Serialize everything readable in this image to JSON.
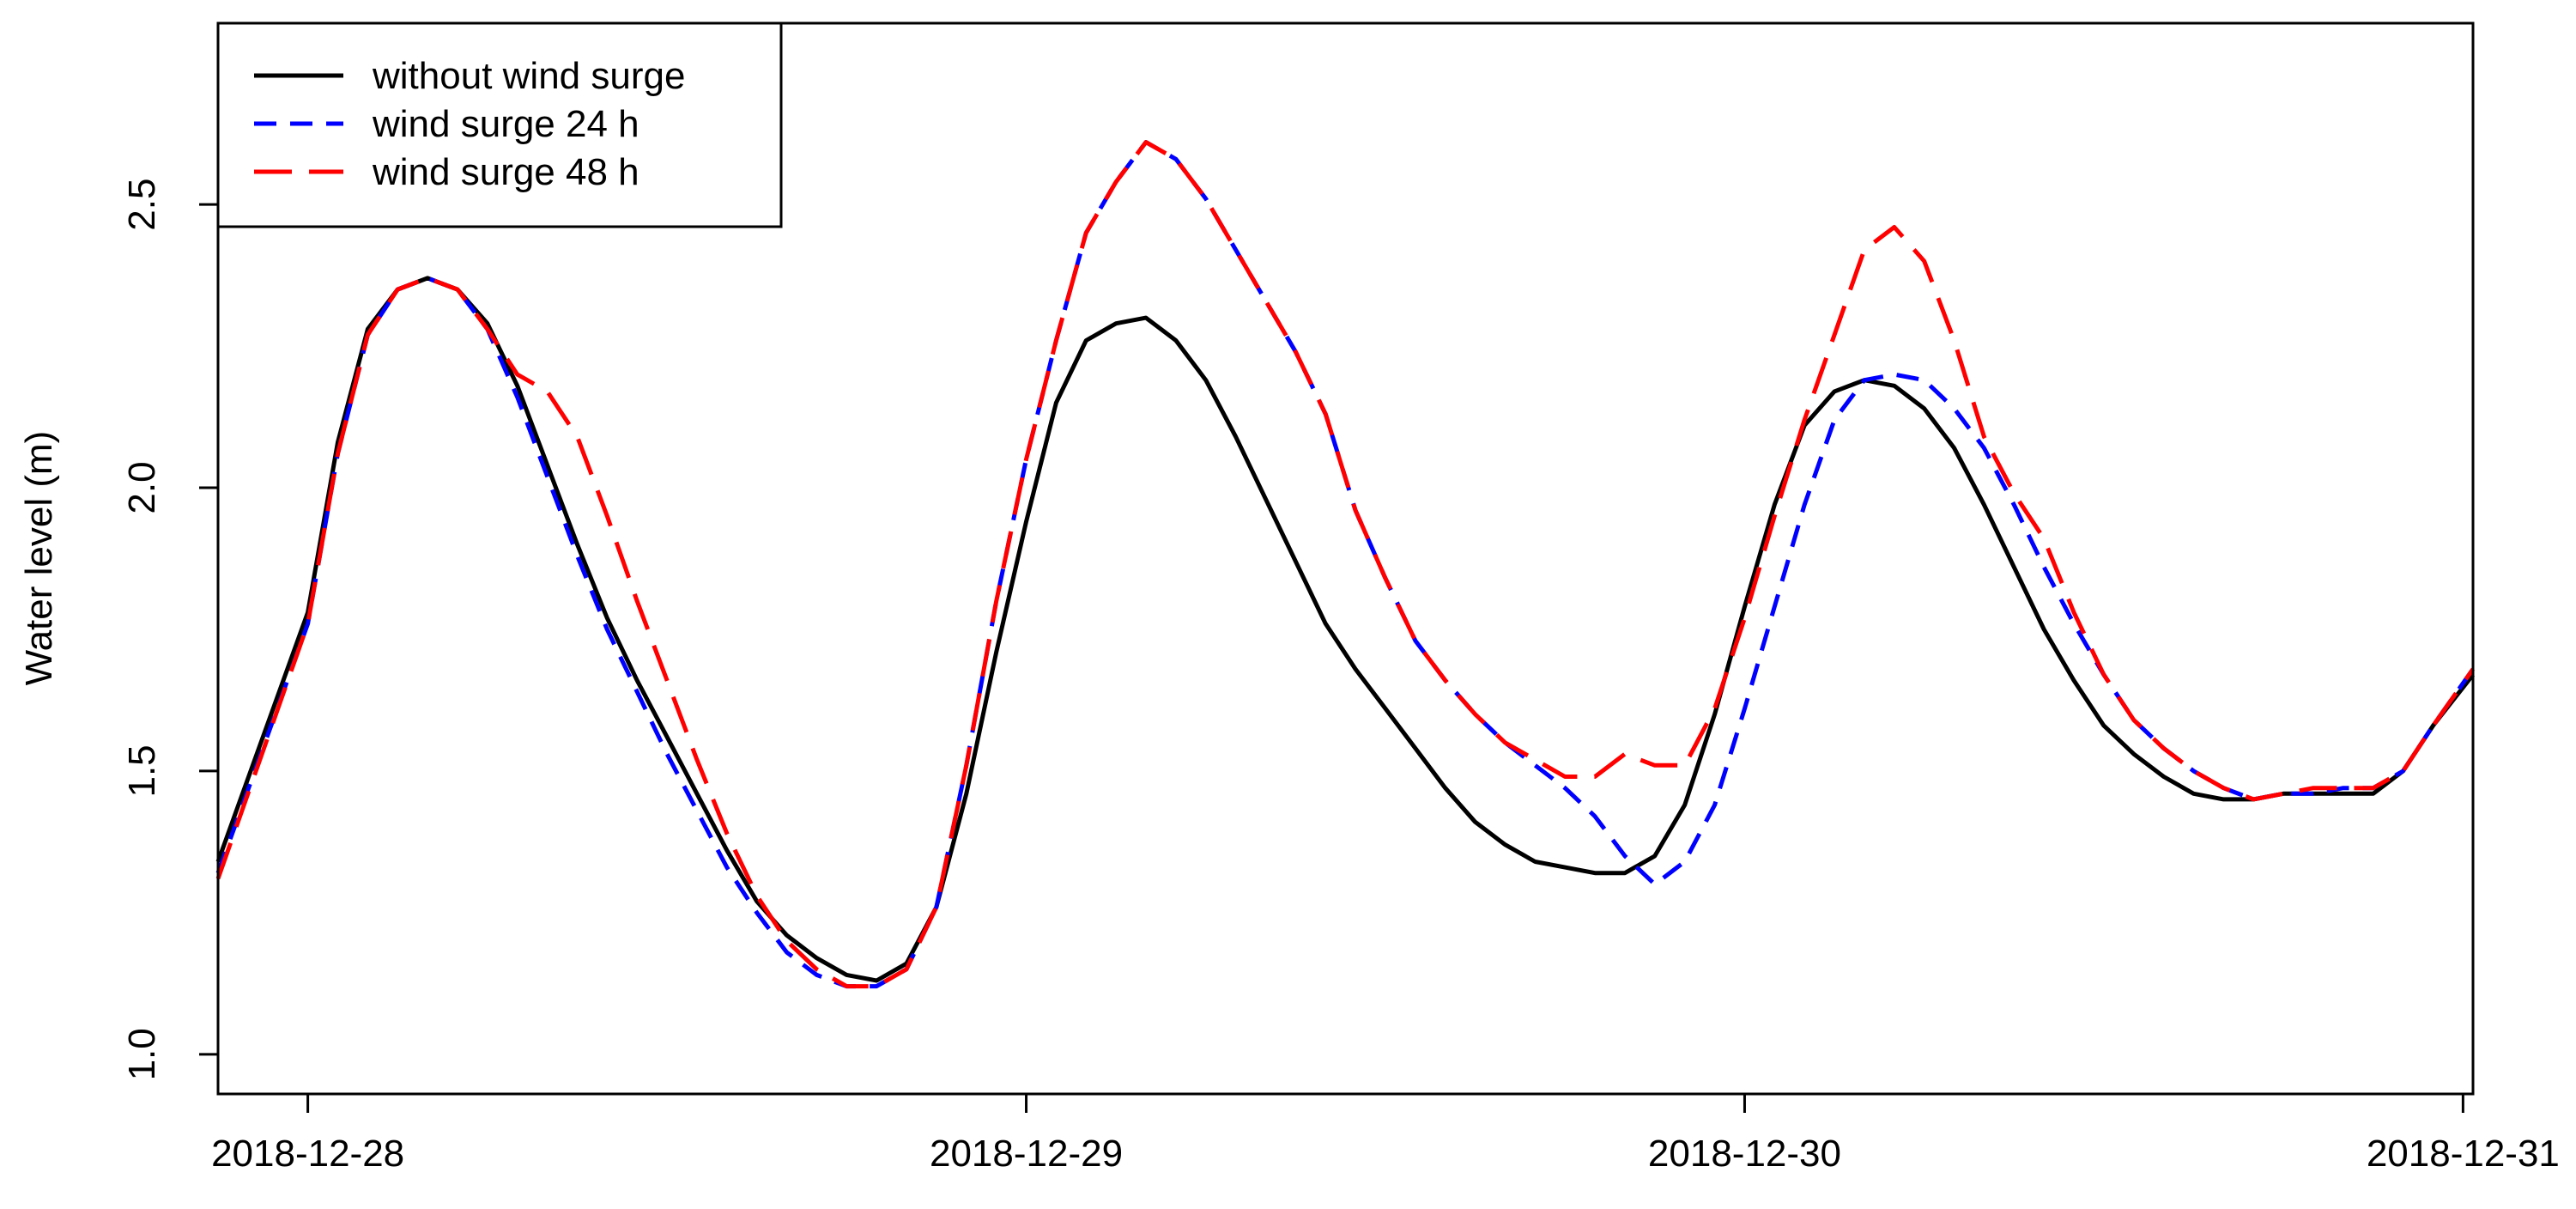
{
  "chart_data": {
    "type": "line",
    "title": "",
    "xlabel": "",
    "ylabel": "Water level (m)",
    "x_unit": "date (6 h / 3 h sampling)",
    "xlim": [
      "2018-12-27T21:00",
      "2018-12-31T00:20"
    ],
    "ylim": [
      0.93,
      2.82
    ],
    "x_ticks": [
      "2018-12-28",
      "2018-12-29",
      "2018-12-30",
      "2018-12-31"
    ],
    "y_ticks": [
      "1.0",
      "1.5",
      "2.0",
      "2.5"
    ],
    "grid": false,
    "legend_position": "top-left",
    "series": [
      {
        "name": "without wind surge",
        "color": "#000000",
        "dash": "solid",
        "points": [
          [
            "2018-12-27T21:00",
            1.34
          ],
          [
            "2018-12-28T00:00",
            1.78
          ],
          [
            "2018-12-28T01:00",
            2.08
          ],
          [
            "2018-12-28T02:00",
            2.28
          ],
          [
            "2018-12-28T03:00",
            2.35
          ],
          [
            "2018-12-28T04:00",
            2.37
          ],
          [
            "2018-12-28T05:00",
            2.35
          ],
          [
            "2018-12-28T06:00",
            2.29
          ],
          [
            "2018-12-28T07:00",
            2.18
          ],
          [
            "2018-12-28T08:00",
            2.04
          ],
          [
            "2018-12-28T09:00",
            1.9
          ],
          [
            "2018-12-28T10:00",
            1.77
          ],
          [
            "2018-12-28T11:00",
            1.66
          ],
          [
            "2018-12-28T12:00",
            1.56
          ],
          [
            "2018-12-28T13:00",
            1.46
          ],
          [
            "2018-12-28T14:00",
            1.36
          ],
          [
            "2018-12-28T15:00",
            1.27
          ],
          [
            "2018-12-28T16:00",
            1.21
          ],
          [
            "2018-12-28T17:00",
            1.17
          ],
          [
            "2018-12-28T18:00",
            1.14
          ],
          [
            "2018-12-28T19:00",
            1.13
          ],
          [
            "2018-12-28T20:00",
            1.16
          ],
          [
            "2018-12-28T21:00",
            1.26
          ],
          [
            "2018-12-28T22:00",
            1.46
          ],
          [
            "2018-12-28T23:00",
            1.71
          ],
          [
            "2018-12-29T00:00",
            1.94
          ],
          [
            "2018-12-29T01:00",
            2.15
          ],
          [
            "2018-12-29T02:00",
            2.26
          ],
          [
            "2018-12-29T03:00",
            2.29
          ],
          [
            "2018-12-29T04:00",
            2.3
          ],
          [
            "2018-12-29T05:00",
            2.26
          ],
          [
            "2018-12-29T06:00",
            2.19
          ],
          [
            "2018-12-29T07:00",
            2.09
          ],
          [
            "2018-12-29T08:00",
            1.98
          ],
          [
            "2018-12-29T09:00",
            1.87
          ],
          [
            "2018-12-29T10:00",
            1.76
          ],
          [
            "2018-12-29T11:00",
            1.68
          ],
          [
            "2018-12-29T12:00",
            1.61
          ],
          [
            "2018-12-29T13:00",
            1.54
          ],
          [
            "2018-12-29T14:00",
            1.47
          ],
          [
            "2018-12-29T15:00",
            1.41
          ],
          [
            "2018-12-29T16:00",
            1.37
          ],
          [
            "2018-12-29T17:00",
            1.34
          ],
          [
            "2018-12-29T18:00",
            1.33
          ],
          [
            "2018-12-29T19:00",
            1.32
          ],
          [
            "2018-12-29T20:00",
            1.32
          ],
          [
            "2018-12-29T21:00",
            1.35
          ],
          [
            "2018-12-29T22:00",
            1.44
          ],
          [
            "2018-12-29T23:00",
            1.6
          ],
          [
            "2018-12-30T00:00",
            1.79
          ],
          [
            "2018-12-30T01:00",
            1.97
          ],
          [
            "2018-12-30T02:00",
            2.11
          ],
          [
            "2018-12-30T03:00",
            2.17
          ],
          [
            "2018-12-30T04:00",
            2.19
          ],
          [
            "2018-12-30T05:00",
            2.18
          ],
          [
            "2018-12-30T06:00",
            2.14
          ],
          [
            "2018-12-30T07:00",
            2.07
          ],
          [
            "2018-12-30T08:00",
            1.97
          ],
          [
            "2018-12-30T09:00",
            1.86
          ],
          [
            "2018-12-30T10:00",
            1.75
          ],
          [
            "2018-12-30T11:00",
            1.66
          ],
          [
            "2018-12-30T12:00",
            1.58
          ],
          [
            "2018-12-30T13:00",
            1.53
          ],
          [
            "2018-12-30T14:00",
            1.49
          ],
          [
            "2018-12-30T15:00",
            1.46
          ],
          [
            "2018-12-30T16:00",
            1.45
          ],
          [
            "2018-12-30T17:00",
            1.45
          ],
          [
            "2018-12-30T18:00",
            1.46
          ],
          [
            "2018-12-30T19:00",
            1.46
          ],
          [
            "2018-12-30T20:00",
            1.46
          ],
          [
            "2018-12-30T21:00",
            1.46
          ],
          [
            "2018-12-30T22:00",
            1.5
          ],
          [
            "2018-12-30T23:00",
            1.58
          ],
          [
            "2018-12-31T00:20",
            1.67
          ]
        ]
      },
      {
        "name": "wind surge 24 h",
        "color": "#0000ff",
        "dash": "short",
        "points": [
          [
            "2018-12-27T21:00",
            1.32
          ],
          [
            "2018-12-28T00:00",
            1.76
          ],
          [
            "2018-12-28T01:00",
            2.06
          ],
          [
            "2018-12-28T02:00",
            2.27
          ],
          [
            "2018-12-28T03:00",
            2.35
          ],
          [
            "2018-12-28T04:00",
            2.37
          ],
          [
            "2018-12-28T05:00",
            2.35
          ],
          [
            "2018-12-28T06:00",
            2.28
          ],
          [
            "2018-12-28T07:00",
            2.16
          ],
          [
            "2018-12-28T08:00",
            2.02
          ],
          [
            "2018-12-28T09:00",
            1.88
          ],
          [
            "2018-12-28T10:00",
            1.75
          ],
          [
            "2018-12-28T11:00",
            1.64
          ],
          [
            "2018-12-28T12:00",
            1.53
          ],
          [
            "2018-12-28T13:00",
            1.43
          ],
          [
            "2018-12-28T14:00",
            1.33
          ],
          [
            "2018-12-28T15:00",
            1.25
          ],
          [
            "2018-12-28T16:00",
            1.18
          ],
          [
            "2018-12-28T17:00",
            1.14
          ],
          [
            "2018-12-28T18:00",
            1.12
          ],
          [
            "2018-12-28T19:00",
            1.12
          ],
          [
            "2018-12-28T20:00",
            1.15
          ],
          [
            "2018-12-28T21:00",
            1.26
          ],
          [
            "2018-12-28T22:00",
            1.51
          ],
          [
            "2018-12-28T23:00",
            1.8
          ],
          [
            "2018-12-29T00:00",
            2.05
          ],
          [
            "2018-12-29T01:00",
            2.26
          ],
          [
            "2018-12-29T02:00",
            2.45
          ],
          [
            "2018-12-29T03:00",
            2.54
          ],
          [
            "2018-12-29T04:00",
            2.61
          ],
          [
            "2018-12-29T05:00",
            2.58
          ],
          [
            "2018-12-29T06:00",
            2.51
          ],
          [
            "2018-12-29T07:00",
            2.42
          ],
          [
            "2018-12-29T08:00",
            2.33
          ],
          [
            "2018-12-29T09:00",
            2.24
          ],
          [
            "2018-12-29T10:00",
            2.13
          ],
          [
            "2018-12-29T11:00",
            1.96
          ],
          [
            "2018-12-29T12:00",
            1.84
          ],
          [
            "2018-12-29T13:00",
            1.73
          ],
          [
            "2018-12-29T14:00",
            1.66
          ],
          [
            "2018-12-29T15:00",
            1.6
          ],
          [
            "2018-12-29T16:00",
            1.55
          ],
          [
            "2018-12-29T17:00",
            1.51
          ],
          [
            "2018-12-29T18:00",
            1.47
          ],
          [
            "2018-12-29T19:00",
            1.42
          ],
          [
            "2018-12-29T20:00",
            1.35
          ],
          [
            "2018-12-29T21:00",
            1.3
          ],
          [
            "2018-12-29T22:00",
            1.34
          ],
          [
            "2018-12-29T23:00",
            1.44
          ],
          [
            "2018-12-30T00:00",
            1.61
          ],
          [
            "2018-12-30T01:00",
            1.79
          ],
          [
            "2018-12-30T02:00",
            1.97
          ],
          [
            "2018-12-30T03:00",
            2.12
          ],
          [
            "2018-12-30T04:00",
            2.19
          ],
          [
            "2018-12-30T05:00",
            2.2
          ],
          [
            "2018-12-30T06:00",
            2.19
          ],
          [
            "2018-12-30T07:00",
            2.14
          ],
          [
            "2018-12-30T08:00",
            2.07
          ],
          [
            "2018-12-30T09:00",
            1.97
          ],
          [
            "2018-12-30T10:00",
            1.86
          ],
          [
            "2018-12-30T11:00",
            1.76
          ],
          [
            "2018-12-30T12:00",
            1.67
          ],
          [
            "2018-12-30T13:00",
            1.59
          ],
          [
            "2018-12-30T14:00",
            1.54
          ],
          [
            "2018-12-30T15:00",
            1.5
          ],
          [
            "2018-12-30T16:00",
            1.47
          ],
          [
            "2018-12-30T17:00",
            1.45
          ],
          [
            "2018-12-30T18:00",
            1.46
          ],
          [
            "2018-12-30T19:00",
            1.46
          ],
          [
            "2018-12-30T20:00",
            1.47
          ],
          [
            "2018-12-30T21:00",
            1.47
          ],
          [
            "2018-12-30T22:00",
            1.5
          ],
          [
            "2018-12-30T23:00",
            1.58
          ],
          [
            "2018-12-31T00:20",
            1.68
          ]
        ]
      },
      {
        "name": "wind surge 48 h",
        "color": "#ff0000",
        "dash": "long",
        "points": [
          [
            "2018-12-27T21:00",
            1.31
          ],
          [
            "2018-12-28T00:00",
            1.76
          ],
          [
            "2018-12-28T01:00",
            2.06
          ],
          [
            "2018-12-28T02:00",
            2.27
          ],
          [
            "2018-12-28T03:00",
            2.35
          ],
          [
            "2018-12-28T04:00",
            2.37
          ],
          [
            "2018-12-28T05:00",
            2.35
          ],
          [
            "2018-12-28T06:00",
            2.28
          ],
          [
            "2018-12-28T07:00",
            2.2
          ],
          [
            "2018-12-28T08:00",
            2.17
          ],
          [
            "2018-12-28T09:00",
            2.09
          ],
          [
            "2018-12-28T10:00",
            1.95
          ],
          [
            "2018-12-28T11:00",
            1.8
          ],
          [
            "2018-12-28T12:00",
            1.66
          ],
          [
            "2018-12-28T13:00",
            1.52
          ],
          [
            "2018-12-28T14:00",
            1.39
          ],
          [
            "2018-12-28T15:00",
            1.28
          ],
          [
            "2018-12-28T16:00",
            1.2
          ],
          [
            "2018-12-28T17:00",
            1.15
          ],
          [
            "2018-12-28T18:00",
            1.12
          ],
          [
            "2018-12-28T19:00",
            1.12
          ],
          [
            "2018-12-28T20:00",
            1.15
          ],
          [
            "2018-12-28T21:00",
            1.26
          ],
          [
            "2018-12-28T22:00",
            1.51
          ],
          [
            "2018-12-28T23:00",
            1.8
          ],
          [
            "2018-12-29T00:00",
            2.05
          ],
          [
            "2018-12-29T01:00",
            2.26
          ],
          [
            "2018-12-29T02:00",
            2.45
          ],
          [
            "2018-12-29T03:00",
            2.54
          ],
          [
            "2018-12-29T04:00",
            2.61
          ],
          [
            "2018-12-29T05:00",
            2.58
          ],
          [
            "2018-12-29T06:00",
            2.51
          ],
          [
            "2018-12-29T07:00",
            2.42
          ],
          [
            "2018-12-29T08:00",
            2.33
          ],
          [
            "2018-12-29T09:00",
            2.24
          ],
          [
            "2018-12-29T10:00",
            2.13
          ],
          [
            "2018-12-29T11:00",
            1.96
          ],
          [
            "2018-12-29T12:00",
            1.84
          ],
          [
            "2018-12-29T13:00",
            1.73
          ],
          [
            "2018-12-29T14:00",
            1.66
          ],
          [
            "2018-12-29T15:00",
            1.6
          ],
          [
            "2018-12-29T16:00",
            1.55
          ],
          [
            "2018-12-29T17:00",
            1.52
          ],
          [
            "2018-12-29T18:00",
            1.49
          ],
          [
            "2018-12-29T19:00",
            1.49
          ],
          [
            "2018-12-29T20:00",
            1.53
          ],
          [
            "2018-12-29T21:00",
            1.51
          ],
          [
            "2018-12-29T22:00",
            1.51
          ],
          [
            "2018-12-29T23:00",
            1.61
          ],
          [
            "2018-12-30T00:00",
            1.77
          ],
          [
            "2018-12-30T01:00",
            1.95
          ],
          [
            "2018-12-30T02:00",
            2.12
          ],
          [
            "2018-12-30T03:00",
            2.27
          ],
          [
            "2018-12-30T04:00",
            2.42
          ],
          [
            "2018-12-30T05:00",
            2.46
          ],
          [
            "2018-12-30T06:00",
            2.4
          ],
          [
            "2018-12-30T07:00",
            2.26
          ],
          [
            "2018-12-30T08:00",
            2.09
          ],
          [
            "2018-12-30T09:00",
            1.99
          ],
          [
            "2018-12-30T10:00",
            1.91
          ],
          [
            "2018-12-30T11:00",
            1.78
          ],
          [
            "2018-12-30T12:00",
            1.67
          ],
          [
            "2018-12-30T13:00",
            1.59
          ],
          [
            "2018-12-30T14:00",
            1.54
          ],
          [
            "2018-12-30T15:00",
            1.5
          ],
          [
            "2018-12-30T16:00",
            1.47
          ],
          [
            "2018-12-30T17:00",
            1.45
          ],
          [
            "2018-12-30T18:00",
            1.46
          ],
          [
            "2018-12-30T19:00",
            1.47
          ],
          [
            "2018-12-30T20:00",
            1.47
          ],
          [
            "2018-12-30T21:00",
            1.47
          ],
          [
            "2018-12-30T22:00",
            1.5
          ],
          [
            "2018-12-30T23:00",
            1.58
          ],
          [
            "2018-12-31T00:20",
            1.68
          ]
        ]
      }
    ]
  }
}
